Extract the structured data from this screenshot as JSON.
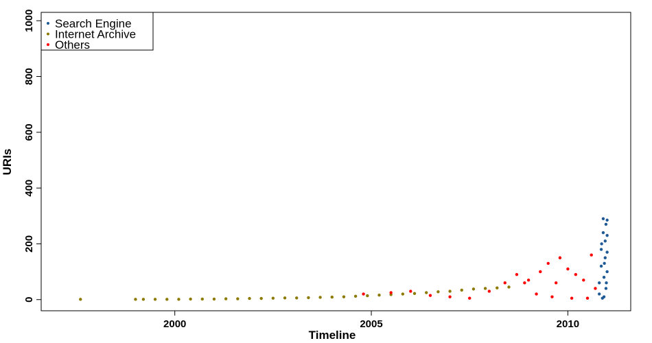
{
  "chart_data": {
    "type": "scatter",
    "xlabel": "Timeline",
    "ylabel": "URIs",
    "xlim": [
      1996.6,
      2011.6
    ],
    "ylim": [
      -40,
      1030
    ],
    "x_ticks": [
      2000,
      2005,
      2010
    ],
    "x_tick_labels": [
      "2000",
      "2005",
      "2010"
    ],
    "y_ticks": [
      0,
      200,
      400,
      600,
      800,
      1000
    ],
    "y_tick_labels": [
      "0",
      "200",
      "400",
      "600",
      "800",
      "1000"
    ],
    "grid": false,
    "legend_position": "top-left",
    "series": [
      {
        "name": "Search Engine",
        "color": "#1f5a96",
        "points": [
          [
            2010.8,
            20
          ],
          [
            2010.8,
            60
          ],
          [
            2010.85,
            120
          ],
          [
            2010.85,
            180
          ],
          [
            2010.9,
            240
          ],
          [
            2010.9,
            290
          ],
          [
            2010.92,
            10
          ],
          [
            2010.92,
            80
          ],
          [
            2010.95,
            150
          ],
          [
            2010.95,
            210
          ],
          [
            2010.97,
            270
          ],
          [
            2010.97,
            40
          ],
          [
            2011.0,
            100
          ],
          [
            2011.0,
            170
          ],
          [
            2011.0,
            230
          ],
          [
            2011.0,
            285
          ],
          [
            2010.88,
            5
          ],
          [
            2010.93,
            130
          ],
          [
            2010.98,
            60
          ],
          [
            2010.86,
            200
          ]
        ]
      },
      {
        "name": "Internet Archive",
        "color": "#8c7a00",
        "points": [
          [
            1997.6,
            1
          ],
          [
            1999.0,
            1
          ],
          [
            1999.2,
            1
          ],
          [
            1999.5,
            1
          ],
          [
            1999.8,
            1
          ],
          [
            2000.1,
            1
          ],
          [
            2000.4,
            2
          ],
          [
            2000.7,
            2
          ],
          [
            2001.0,
            2
          ],
          [
            2001.3,
            3
          ],
          [
            2001.6,
            3
          ],
          [
            2001.9,
            4
          ],
          [
            2002.2,
            4
          ],
          [
            2002.5,
            5
          ],
          [
            2002.8,
            6
          ],
          [
            2003.1,
            6
          ],
          [
            2003.4,
            7
          ],
          [
            2003.7,
            8
          ],
          [
            2004.0,
            9
          ],
          [
            2004.3,
            10
          ],
          [
            2004.6,
            12
          ],
          [
            2004.9,
            14
          ],
          [
            2005.2,
            16
          ],
          [
            2005.5,
            18
          ],
          [
            2005.8,
            20
          ],
          [
            2006.1,
            22
          ],
          [
            2006.4,
            25
          ],
          [
            2006.7,
            28
          ],
          [
            2007.0,
            30
          ],
          [
            2007.3,
            34
          ],
          [
            2007.6,
            38
          ],
          [
            2007.9,
            40
          ],
          [
            2008.2,
            42
          ],
          [
            2008.5,
            45
          ]
        ]
      },
      {
        "name": "Others",
        "color": "#ff0000",
        "points": [
          [
            2004.8,
            20
          ],
          [
            2005.5,
            25
          ],
          [
            2006.0,
            30
          ],
          [
            2006.5,
            15
          ],
          [
            2007.0,
            10
          ],
          [
            2007.5,
            5
          ],
          [
            2008.0,
            30
          ],
          [
            2008.4,
            60
          ],
          [
            2008.7,
            90
          ],
          [
            2009.0,
            70
          ],
          [
            2009.3,
            100
          ],
          [
            2009.5,
            130
          ],
          [
            2009.8,
            150
          ],
          [
            2010.0,
            110
          ],
          [
            2010.2,
            90
          ],
          [
            2010.4,
            70
          ],
          [
            2010.6,
            160
          ],
          [
            2010.7,
            40
          ],
          [
            2009.2,
            20
          ],
          [
            2009.6,
            10
          ],
          [
            2010.1,
            5
          ],
          [
            2010.5,
            5
          ],
          [
            2008.9,
            60
          ],
          [
            2009.7,
            60
          ]
        ]
      }
    ]
  }
}
